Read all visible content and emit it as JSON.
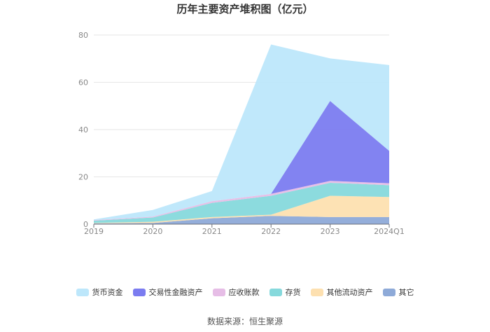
{
  "chart_data": {
    "type": "area",
    "stacked": true,
    "title": "历年主要资产堆积图（亿元）",
    "xlabel": "",
    "ylabel": "",
    "categories": [
      "2019",
      "2020",
      "2021",
      "2022",
      "2023",
      "2024Q1"
    ],
    "ylim": [
      0,
      80
    ],
    "yticks": [
      "0",
      "20",
      "40",
      "60",
      "80"
    ],
    "grid": true,
    "legend_position": "bottom",
    "series": [
      {
        "name": "其它",
        "color": "#8eaad8",
        "values": [
          0.3,
          0.5,
          2.5,
          3.5,
          3.0,
          3.0
        ]
      },
      {
        "name": "其他流动资产",
        "color": "#fde0b0",
        "values": [
          0.2,
          0.5,
          0.5,
          0.5,
          9.0,
          8.5
        ]
      },
      {
        "name": "存货",
        "color": "#86d9dc",
        "values": [
          1.0,
          1.8,
          6.0,
          8.0,
          5.5,
          5.0
        ]
      },
      {
        "name": "应收账款",
        "color": "#e6bde6",
        "values": [
          0.2,
          0.4,
          0.7,
          0.8,
          0.8,
          0.8
        ]
      },
      {
        "name": "交易性金融资产",
        "color": "#7b7cf0",
        "values": [
          0,
          0,
          0,
          0,
          33.8,
          13.7
        ]
      },
      {
        "name": "货币资金",
        "color": "#bde7fb",
        "values": [
          0.3,
          2.8,
          4.3,
          63.2,
          18.0,
          36.3
        ]
      }
    ]
  },
  "source": "数据来源：恒生聚源"
}
